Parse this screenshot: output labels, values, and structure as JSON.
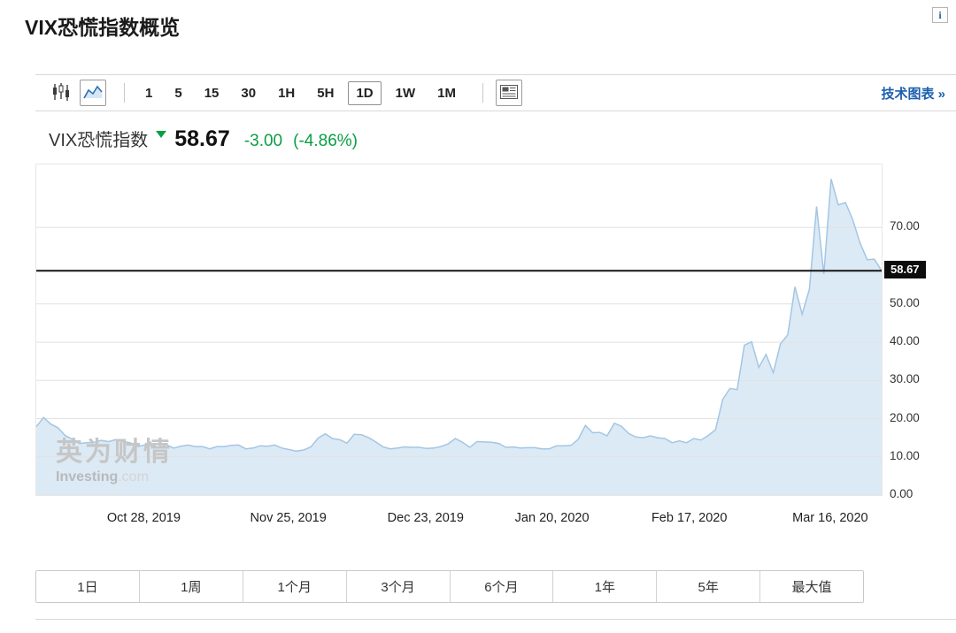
{
  "page": {
    "title": "VIX恐慌指数概览",
    "info_glyph": "i"
  },
  "toolbar": {
    "chart_types": [
      {
        "name": "candlestick",
        "selected": false
      },
      {
        "name": "area",
        "selected": true
      }
    ],
    "intervals": [
      "1",
      "5",
      "15",
      "30",
      "1H",
      "5H",
      "1D",
      "1W",
      "1M"
    ],
    "selected_interval": "1D",
    "tech_chart_link": "技术图表 »"
  },
  "quote": {
    "name": "VIX恐慌指数",
    "direction": "down",
    "price": "58.67",
    "change": "-3.00",
    "change_pct": "(-4.86%)",
    "change_color": "#0a9e45"
  },
  "watermark": {
    "cn": "英为财情",
    "en_name": "Investing",
    "en_tld": ".com"
  },
  "periods": [
    "1日",
    "1周",
    "1个月",
    "3个月",
    "6个月",
    "1年",
    "5年",
    "最大值"
  ],
  "chart_data": {
    "type": "area",
    "title": "VIX恐慌指数",
    "current_price": 58.67,
    "current_price_label": "58.67",
    "y_axis": {
      "min": 0,
      "max": 86.5,
      "ticks": [
        {
          "value": 70,
          "label": "70.00"
        },
        {
          "value": 50,
          "label": "50.00"
        },
        {
          "value": 40,
          "label": "40.00"
        },
        {
          "value": 30,
          "label": "30.00"
        },
        {
          "value": 20,
          "label": "20.00"
        },
        {
          "value": 10,
          "label": "10.00"
        },
        {
          "value": 0,
          "label": "0.00"
        }
      ]
    },
    "x_ticks": [
      {
        "label": "Oct 28, 2019",
        "index": 15
      },
      {
        "label": "Nov 25, 2019",
        "index": 35
      },
      {
        "label": "Dec 23, 2019",
        "index": 54
      },
      {
        "label": "Jan 20, 2020",
        "index": 71.5
      },
      {
        "label": "Feb 17, 2020",
        "index": 90.5
      },
      {
        "label": "Mar 16, 2020",
        "index": 110
      }
    ],
    "dates": [
      "2019-10-07",
      "2019-10-08",
      "2019-10-09",
      "2019-10-10",
      "2019-10-11",
      "2019-10-14",
      "2019-10-15",
      "2019-10-16",
      "2019-10-17",
      "2019-10-18",
      "2019-10-21",
      "2019-10-22",
      "2019-10-23",
      "2019-10-24",
      "2019-10-25",
      "2019-10-28",
      "2019-10-29",
      "2019-10-30",
      "2019-10-31",
      "2019-11-01",
      "2019-11-04",
      "2019-11-05",
      "2019-11-06",
      "2019-11-07",
      "2019-11-08",
      "2019-11-11",
      "2019-11-12",
      "2019-11-13",
      "2019-11-14",
      "2019-11-15",
      "2019-11-18",
      "2019-11-19",
      "2019-11-20",
      "2019-11-21",
      "2019-11-22",
      "2019-11-25",
      "2019-11-26",
      "2019-11-27",
      "2019-11-29",
      "2019-12-02",
      "2019-12-03",
      "2019-12-04",
      "2019-12-05",
      "2019-12-06",
      "2019-12-09",
      "2019-12-10",
      "2019-12-11",
      "2019-12-12",
      "2019-12-13",
      "2019-12-16",
      "2019-12-17",
      "2019-12-18",
      "2019-12-19",
      "2019-12-20",
      "2019-12-23",
      "2019-12-24",
      "2019-12-26",
      "2019-12-27",
      "2019-12-30",
      "2019-12-31",
      "2020-01-02",
      "2020-01-03",
      "2020-01-06",
      "2020-01-07",
      "2020-01-08",
      "2020-01-09",
      "2020-01-10",
      "2020-01-13",
      "2020-01-14",
      "2020-01-15",
      "2020-01-16",
      "2020-01-17",
      "2020-01-21",
      "2020-01-22",
      "2020-01-23",
      "2020-01-24",
      "2020-01-27",
      "2020-01-28",
      "2020-01-29",
      "2020-01-30",
      "2020-01-31",
      "2020-02-03",
      "2020-02-04",
      "2020-02-05",
      "2020-02-06",
      "2020-02-07",
      "2020-02-10",
      "2020-02-11",
      "2020-02-12",
      "2020-02-13",
      "2020-02-14",
      "2020-02-18",
      "2020-02-19",
      "2020-02-20",
      "2020-02-21",
      "2020-02-24",
      "2020-02-25",
      "2020-02-26",
      "2020-02-27",
      "2020-02-28",
      "2020-03-02",
      "2020-03-03",
      "2020-03-04",
      "2020-03-05",
      "2020-03-06",
      "2020-03-09",
      "2020-03-10",
      "2020-03-11",
      "2020-03-12",
      "2020-03-13",
      "2020-03-16",
      "2020-03-17",
      "2020-03-18",
      "2020-03-19",
      "2020-03-20",
      "2020-03-23",
      "2020-03-24",
      "2020-03-25"
    ],
    "values": [
      17.9,
      20.3,
      18.6,
      17.6,
      15.6,
      14.6,
      13.5,
      13.7,
      13.8,
      14.3,
      14.0,
      14.5,
      14.0,
      13.7,
      12.7,
      13.1,
      13.2,
      12.3,
      13.2,
      12.3,
      12.8,
      13.1,
      12.7,
      12.7,
      12.1,
      12.7,
      12.7,
      13.0,
      13.1,
      12.1,
      12.3,
      12.9,
      12.8,
      13.1,
      12.3,
      11.9,
      11.5,
      11.8,
      12.6,
      14.9,
      16.0,
      14.8,
      14.5,
      13.6,
      15.9,
      15.8,
      15.0,
      13.9,
      12.6,
      12.1,
      12.3,
      12.6,
      12.5,
      12.5,
      12.2,
      12.3,
      12.7,
      13.4,
      14.8,
      13.8,
      12.5,
      14.0,
      13.9,
      13.8,
      13.5,
      12.5,
      12.6,
      12.3,
      12.4,
      12.4,
      12.1,
      12.1,
      12.9,
      12.9,
      13.0,
      14.6,
      18.2,
      16.3,
      16.4,
      15.5,
      18.8,
      18.0,
      16.1,
      15.2,
      15.0,
      15.5,
      15.0,
      14.8,
      13.7,
      14.2,
      13.7,
      14.8,
      14.4,
      15.6,
      17.1,
      25.0,
      27.9,
      27.6,
      39.2,
      40.1,
      33.4,
      36.8,
      32.0,
      39.6,
      41.9,
      54.5,
      47.3,
      53.9,
      75.5,
      57.8,
      82.7,
      75.9,
      76.5,
      72.0,
      66.0,
      61.6,
      61.7,
      58.67
    ],
    "grid": true,
    "colors": {
      "area_fill": "#dceaf6",
      "line": "#a3c6e3",
      "price_line": "#151515",
      "grid": "#e2e2e2"
    }
  }
}
